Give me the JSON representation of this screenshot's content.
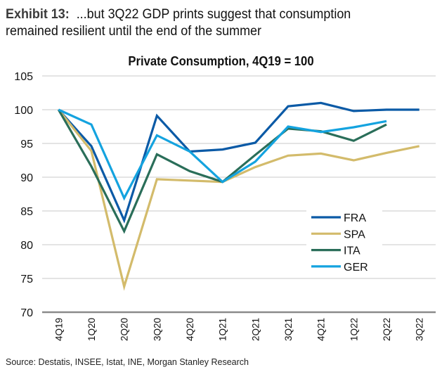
{
  "header": {
    "exhibit_label": "Exhibit 13:",
    "exhibit_text_line1": "...but 3Q22 GDP prints suggest that consumption",
    "exhibit_text_line2": "remained resilient until the end of the summer"
  },
  "source": "Source: Destatis, INSEE, Istat, INE, Morgan Stanley Research",
  "chart_data": {
    "type": "line",
    "title": "Private Consumption, 4Q19 = 100",
    "xlabel": "",
    "ylabel": "",
    "ylim": [
      70,
      105
    ],
    "yticks": [
      70,
      75,
      80,
      85,
      90,
      95,
      100,
      105
    ],
    "grid": true,
    "legend_position": "center-right",
    "categories": [
      "4Q19",
      "1Q20",
      "2Q20",
      "3Q20",
      "4Q20",
      "1Q21",
      "2Q21",
      "3Q21",
      "4Q21",
      "1Q22",
      "2Q22",
      "3Q22"
    ],
    "series": [
      {
        "name": "FRA",
        "color": "#0B5AA6",
        "values": [
          100,
          94.6,
          83.6,
          99.1,
          93.8,
          94.1,
          95.1,
          100.5,
          101.0,
          99.8,
          100.0,
          100.0
        ]
      },
      {
        "name": "SPA",
        "color": "#D3BB6B",
        "values": [
          100,
          93.9,
          73.8,
          89.7,
          89.5,
          89.3,
          91.5,
          93.2,
          93.5,
          92.5,
          93.6,
          94.6
        ]
      },
      {
        "name": "ITA",
        "color": "#2A6E59",
        "values": [
          100,
          91.6,
          82.0,
          93.4,
          90.9,
          89.3,
          93.3,
          97.2,
          96.8,
          95.4,
          97.8,
          null
        ]
      },
      {
        "name": "GER",
        "color": "#14A3DF",
        "values": [
          100,
          97.8,
          86.9,
          96.2,
          93.8,
          89.3,
          92.3,
          97.5,
          96.7,
          97.4,
          98.3,
          null
        ]
      }
    ]
  }
}
